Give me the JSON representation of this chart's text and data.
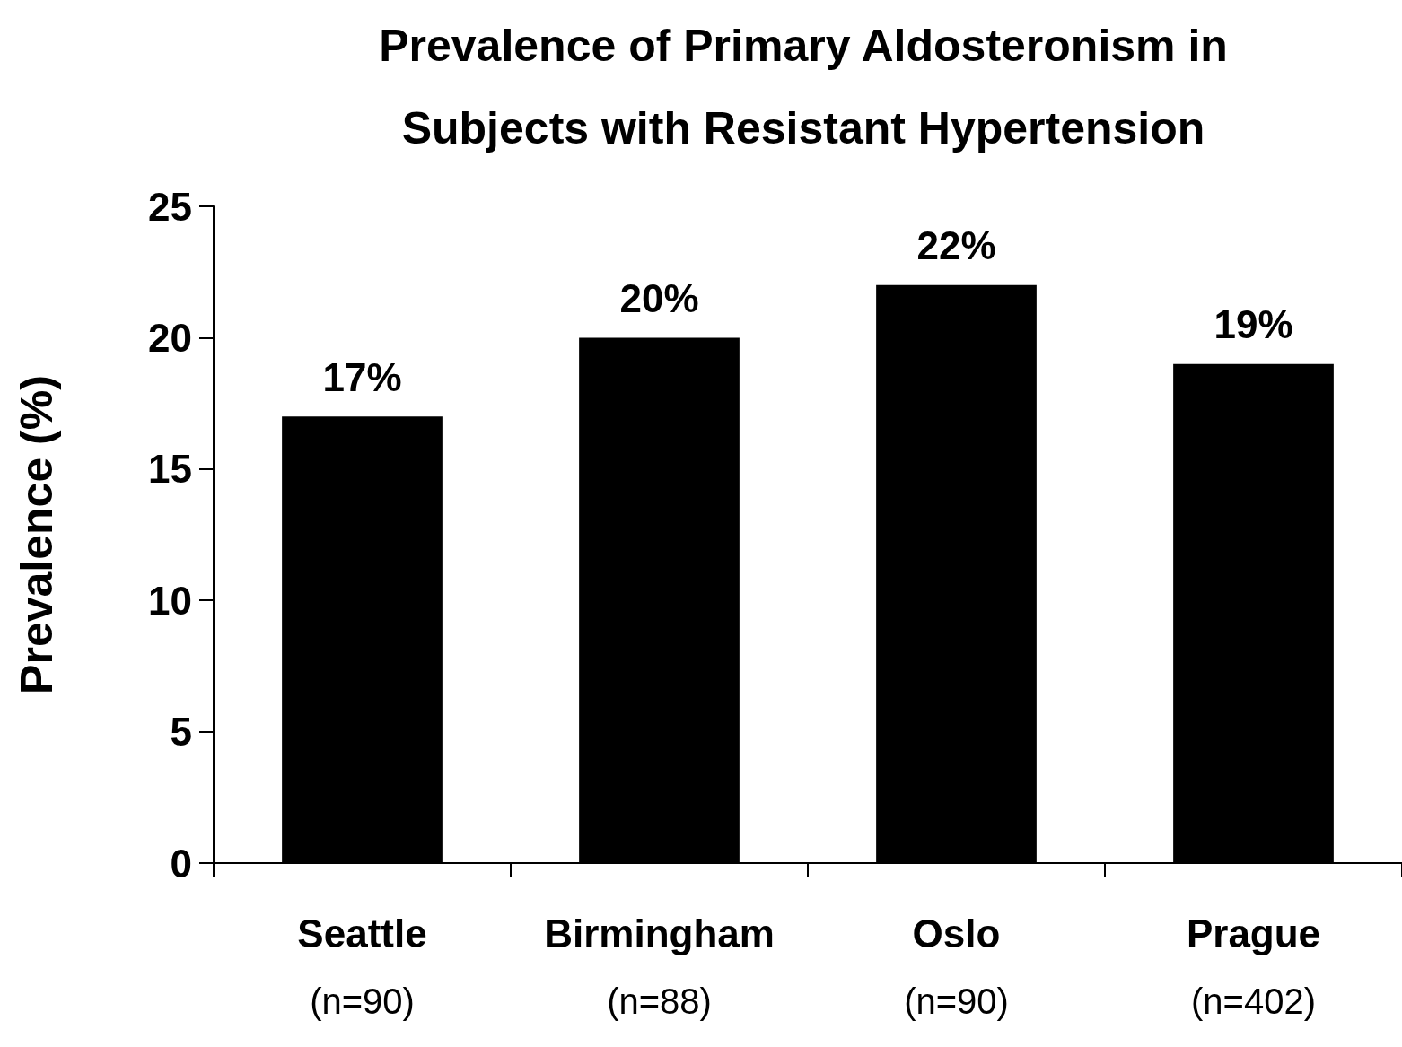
{
  "chart_data": {
    "type": "bar",
    "title": "Prevalence of Primary Aldosteronism in\nSubjects with Resistant Hypertension",
    "ylabel": "Prevalence (%)",
    "categories": [
      "Seattle\n(n=90)",
      "Birmingham\n(n=88)",
      "Oslo\n(n=90)",
      "Prague\n(n=402)"
    ],
    "values": [
      17,
      20,
      22,
      19
    ],
    "value_labels": [
      "17%",
      "20%",
      "22%",
      "19%"
    ],
    "color": "#000000",
    "ylim": [
      0,
      25
    ],
    "yticks": [
      0,
      5,
      10,
      15,
      20,
      25
    ],
    "grid": false
  }
}
